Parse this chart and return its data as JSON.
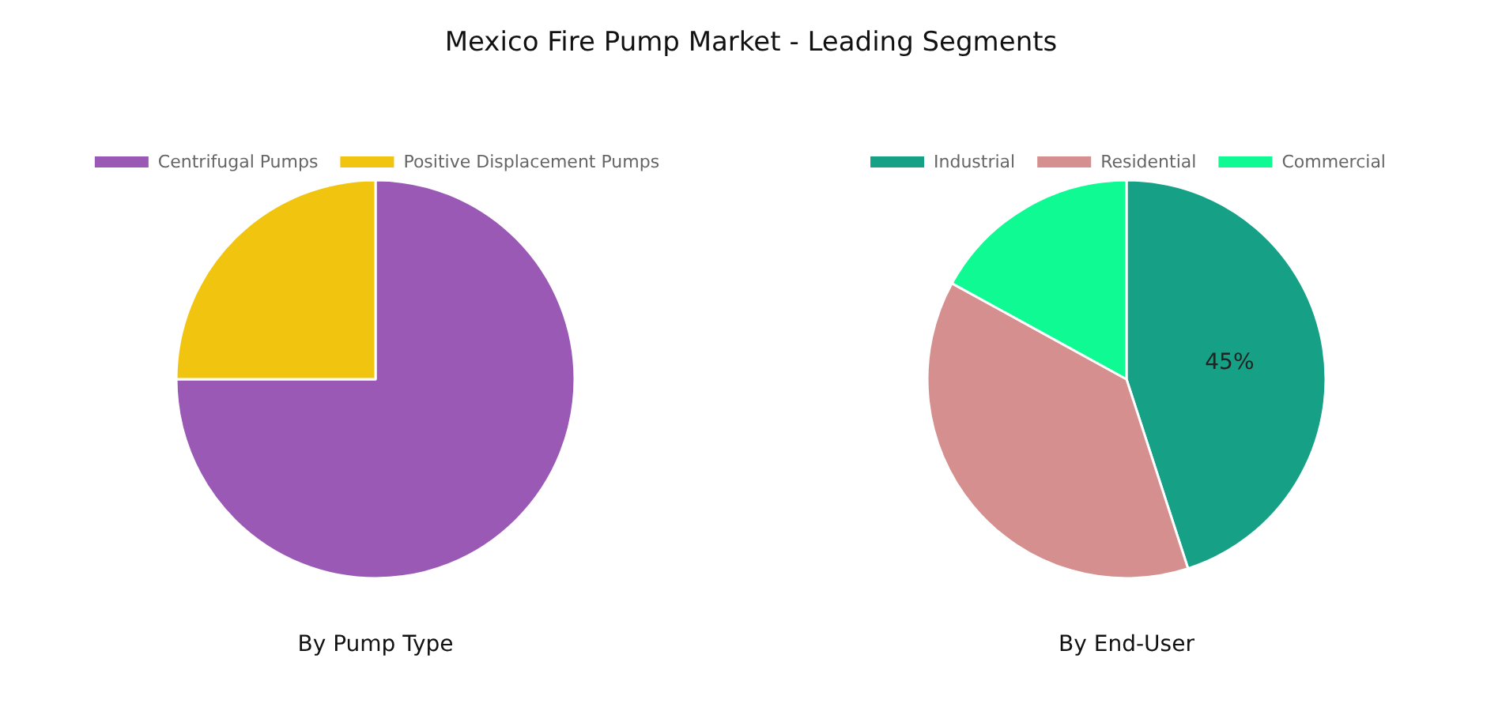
{
  "chart_data": [
    {
      "type": "pie",
      "title": "Mexico Fire Pump Market - Leading Segments",
      "subtitle": "By Pump Type",
      "categories": [
        "Centrifugal Pumps",
        "Positive Displacement Pumps"
      ],
      "values": [
        75,
        25
      ],
      "colors": [
        "#9b59b6",
        "#f1c40f"
      ],
      "legend": "top"
    },
    {
      "type": "pie",
      "subtitle": "By End-User",
      "categories": [
        "Industrial",
        "Residential",
        "Commercial"
      ],
      "values": [
        45,
        38,
        17
      ],
      "colors": [
        "#16a085",
        "#d48f8e",
        "#10fa94"
      ],
      "value_labels": [
        "45%",
        null,
        null
      ],
      "legend": "top"
    }
  ]
}
